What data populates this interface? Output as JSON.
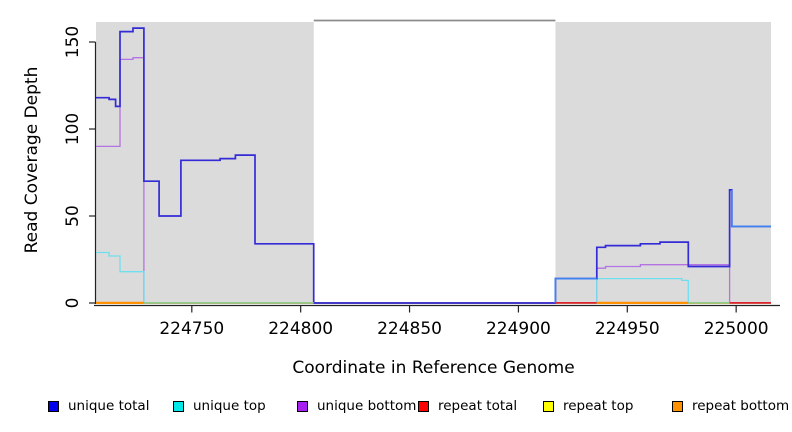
{
  "chart_data": {
    "type": "line",
    "step": true,
    "x_axis": {
      "label": "Coordinate in Reference Genome",
      "range": [
        224706,
        225016
      ],
      "ticks": [
        224750,
        224800,
        224850,
        224900,
        224950,
        225000
      ]
    },
    "y_axis": {
      "label": "Read Coverage Depth",
      "range": [
        0,
        165
      ],
      "ticks": [
        0,
        50,
        100,
        150
      ]
    },
    "band_color": "#DBDBDB",
    "gap_border_color": "#8C8C8C",
    "shaded_regions": [
      {
        "from": 224706,
        "to": 224806
      },
      {
        "from": 224917,
        "to": 225016
      }
    ],
    "unshaded_gap": {
      "from": 224806,
      "to": 224917
    },
    "series": [
      {
        "name": "repeat total",
        "color": "#DD2233",
        "width": 1.4,
        "points": [
          [
            224706,
            0
          ]
        ]
      },
      {
        "name": "repeat top",
        "color": "#FFEE00",
        "width": 1.4,
        "points": [
          [
            224706,
            0
          ]
        ]
      },
      {
        "name": "repeat bottom",
        "color": "#FF9100",
        "width": 2,
        "points": [
          [
            224706,
            0
          ]
        ]
      },
      {
        "name": "unique bottom",
        "color": "#B473E2",
        "width": 1.3,
        "points": [
          [
            224706,
            90
          ],
          [
            224717,
            140
          ],
          [
            224723,
            141
          ],
          [
            224728,
            0
          ],
          [
            224936,
            20
          ],
          [
            224940,
            21
          ],
          [
            224956,
            22
          ],
          [
            224997,
            0
          ]
        ]
      },
      {
        "name": "unique top",
        "color": "#6FDFEF",
        "width": 1.3,
        "points": [
          [
            224706,
            29
          ],
          [
            224712,
            27
          ],
          [
            224717,
            18
          ],
          [
            224728,
            0
          ],
          [
            224936,
            14
          ],
          [
            224975,
            13
          ],
          [
            224978,
            0
          ]
        ]
      },
      {
        "name": "unique total",
        "color": "#332BD6",
        "width": 1.7,
        "points": [
          [
            224706,
            118
          ],
          [
            224712,
            117
          ],
          [
            224715,
            113
          ],
          [
            224717,
            156
          ],
          [
            224723,
            158
          ],
          [
            224728,
            70
          ],
          [
            224735,
            50
          ],
          [
            224745,
            82
          ],
          [
            224763,
            83
          ],
          [
            224770,
            85
          ],
          [
            224779,
            34
          ],
          [
            224806,
            0
          ],
          [
            224917,
            14
          ],
          [
            224936,
            32
          ],
          [
            224940,
            33
          ],
          [
            224956,
            34
          ],
          [
            224965,
            35
          ],
          [
            224978,
            21
          ],
          [
            224997,
            65
          ],
          [
            224998,
            44
          ]
        ]
      }
    ],
    "highlight_paths": [
      {
        "color": "#3F82F2",
        "width": 1.7,
        "points": [
          [
            224917,
            0
          ],
          [
            224917,
            14
          ]
        ],
        "end": 224936
      },
      {
        "color": "#3F82F2",
        "width": 1.7,
        "points": [
          [
            224998,
            65
          ],
          [
            224998,
            44
          ]
        ],
        "end": 225016
      }
    ],
    "baseline_segments": [
      {
        "from": 224706,
        "to": 224728,
        "color": "#FF9100",
        "width": 2.2
      },
      {
        "from": 224728,
        "to": 224806,
        "color": "#8FCD8F",
        "width": 1.6
      },
      {
        "from": 224917,
        "to": 224936,
        "color": "#DD2233",
        "width": 1.6
      },
      {
        "from": 224936,
        "to": 224978,
        "color": "#FF9100",
        "width": 2.2
      },
      {
        "from": 224978,
        "to": 224997,
        "color": "#8FCD8F",
        "width": 1.6
      },
      {
        "from": 224997,
        "to": 225016,
        "color": "#DD2233",
        "width": 1.6
      }
    ],
    "legend": [
      {
        "label": "unique total",
        "color": "#0000EE"
      },
      {
        "label": "unique top",
        "color": "#00E8E8"
      },
      {
        "label": "unique bottom",
        "color": "#A620F0"
      },
      {
        "label": "repeat total",
        "color": "#FF0000"
      },
      {
        "label": "repeat top",
        "color": "#FFFF00"
      },
      {
        "label": "repeat bottom",
        "color": "#FF9100"
      }
    ]
  }
}
